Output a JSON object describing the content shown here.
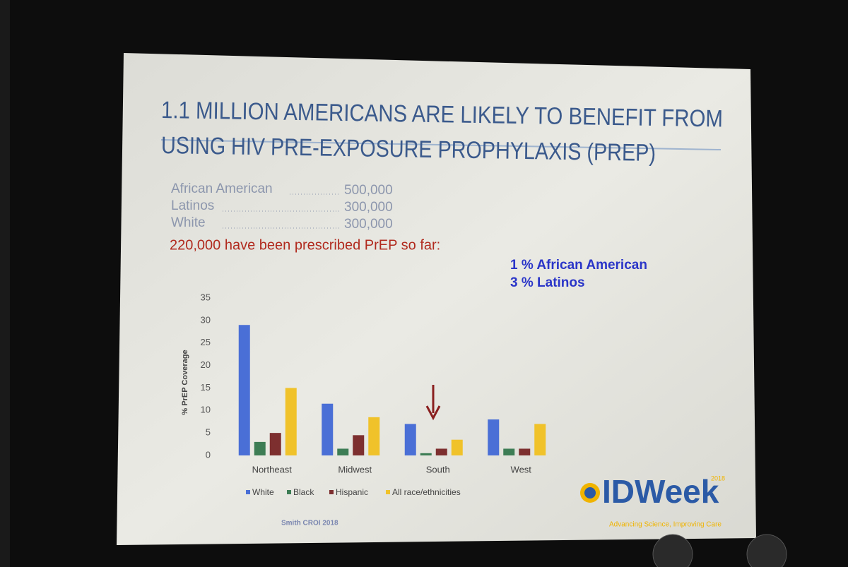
{
  "slide": {
    "title_lines": [
      "1.1 MILLION AMERICANS ARE LIKELY TO BENEFIT FROM",
      "USING HIV PRE-EXPOSURE PROPHYLAXIS (PREP)"
    ],
    "groups": [
      {
        "label": "African American",
        "count": "500,000"
      },
      {
        "label": "Latinos",
        "count": "300,000"
      },
      {
        "label": "White",
        "count": "300,000"
      }
    ],
    "prescribed": "220,000 have been prescribed PrEP so far:",
    "shares": [
      "1 % African American",
      "3 % Latinos"
    ],
    "source": "Smith CROI 2018",
    "logo": {
      "name": "IDWeek",
      "year": "2018",
      "tagline": "Advancing Science, Improving Care"
    }
  },
  "chart_data": {
    "type": "bar",
    "y_label": "% PrEP Coverage",
    "categories": [
      "Northeast",
      "Midwest",
      "South",
      "West"
    ],
    "series": [
      {
        "name": "White",
        "color": "#4a6fd6",
        "values": [
          29,
          11.5,
          7,
          8
        ]
      },
      {
        "name": "Black",
        "color": "#3d7d55",
        "values": [
          3,
          1.5,
          0.5,
          1.5
        ]
      },
      {
        "name": "Hispanic",
        "color": "#7d2f2f",
        "values": [
          5,
          4.5,
          1.5,
          1.5
        ]
      },
      {
        "name": "All race/ethnicities",
        "color": "#f0c22a",
        "values": [
          15,
          8.5,
          3.5,
          7
        ]
      }
    ],
    "ylim": [
      0,
      35
    ],
    "yticks": [
      0,
      5,
      10,
      15,
      20,
      25,
      30,
      35
    ],
    "grid": false,
    "legend": "bottom"
  }
}
